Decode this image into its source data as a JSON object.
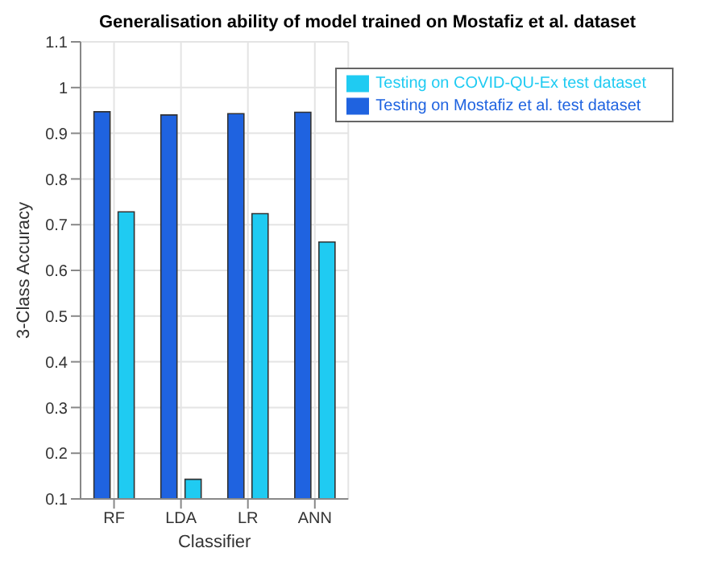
{
  "chart_data": {
    "type": "bar",
    "title": "Generalisation ability of model trained on Mostafiz et al. dataset",
    "xlabel": "Classifier",
    "ylabel": "3-Class Accuracy",
    "categories": [
      "RF",
      "LDA",
      "LR",
      "ANN"
    ],
    "series": [
      {
        "name": "Testing on Mostafiz et al. test dataset",
        "color": "#1f63e0",
        "values": [
          0.947,
          0.94,
          0.943,
          0.946
        ]
      },
      {
        "name": "Testing on COVID-QU-Ex test dataset",
        "color": "#1fcbf2",
        "values": [
          0.728,
          0.143,
          0.724,
          0.662
        ]
      }
    ],
    "ylim": [
      0.1,
      1.1
    ],
    "yticks": [
      0.1,
      0.2,
      0.3,
      0.4,
      0.5,
      0.6,
      0.7,
      0.8,
      0.9,
      1,
      1.1
    ],
    "grid": true,
    "legend": "top right"
  }
}
